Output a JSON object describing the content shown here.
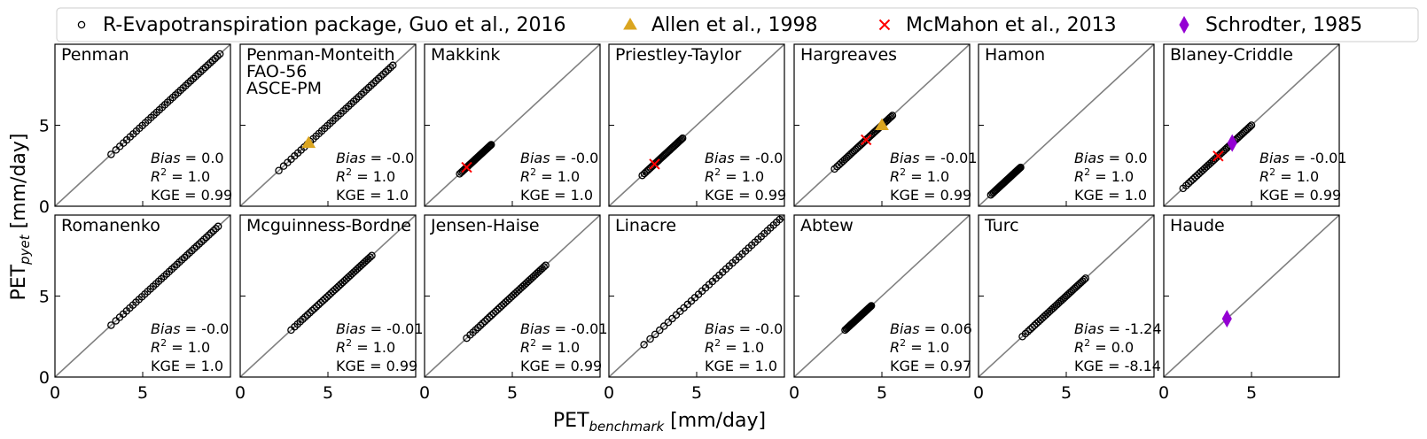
{
  "figure": {
    "legend": [
      {
        "label": "R-Evapotranspiration package, Guo et al., 2016",
        "marker": "open-circle",
        "color": "#000000"
      },
      {
        "label": "Allen et al., 1998",
        "marker": "triangle",
        "color": "#DAA520"
      },
      {
        "label": "McMahon et al., 2013",
        "marker": "cross",
        "color": "#FF0000"
      },
      {
        "label": "Schrodter, 1985",
        "marker": "thin-diamond",
        "color": "#9400D3"
      }
    ],
    "xlabel_main": "PET",
    "xlabel_sub": "benchmark",
    "xlabel_unit": " [mm/day]",
    "ylabel_main": "PET",
    "ylabel_sub": "pyet",
    "ylabel_unit": " [mm/day]",
    "bias_label": "Bias",
    "r2_label": "R",
    "kge_label": "KGE",
    "colors": {
      "reference": "#000000",
      "line": "#808080"
    }
  },
  "chart_data": [
    {
      "type": "scatter",
      "title": [
        "Penman"
      ],
      "stats": {
        "bias": "0.0",
        "r2": "1.0",
        "kge": "0.99"
      },
      "xlim": [
        0,
        10
      ],
      "ylim": [
        0,
        10
      ],
      "xticks": [
        0,
        5
      ],
      "yticks": [
        0,
        5
      ],
      "identity_line": true,
      "reference": {
        "from": 3.2,
        "to": 9.4,
        "n": 40
      },
      "markers": []
    },
    {
      "type": "scatter",
      "title": [
        "Penman-Monteith",
        "FAO-56",
        "ASCE-PM"
      ],
      "stats": {
        "bias": "-0.0",
        "r2": "1.0",
        "kge": "1.0"
      },
      "xlim": [
        0,
        10
      ],
      "ylim": [
        0,
        10
      ],
      "xticks": [
        0,
        5
      ],
      "yticks": [
        0,
        5
      ],
      "identity_line": true,
      "reference": {
        "from": 2.2,
        "to": 8.7,
        "n": 42
      },
      "markers": [
        {
          "series": "Allen et al., 1998",
          "x": 3.9,
          "y": 3.9
        }
      ]
    },
    {
      "type": "scatter",
      "title": [
        "Makkink"
      ],
      "stats": {
        "bias": "-0.0",
        "r2": "1.0",
        "kge": "1.0"
      },
      "xlim": [
        0,
        10
      ],
      "ylim": [
        0,
        10
      ],
      "xticks": [
        0,
        5
      ],
      "yticks": [
        0,
        5
      ],
      "identity_line": true,
      "reference": {
        "from": 2.0,
        "to": 3.8,
        "n": 34
      },
      "markers": [
        {
          "series": "McMahon et al., 2013",
          "x": 2.4,
          "y": 2.4
        }
      ]
    },
    {
      "type": "scatter",
      "title": [
        "Priestley-Taylor"
      ],
      "stats": {
        "bias": "-0.0",
        "r2": "1.0",
        "kge": "0.99"
      },
      "xlim": [
        0,
        10
      ],
      "ylim": [
        0,
        10
      ],
      "xticks": [
        0,
        5
      ],
      "yticks": [
        0,
        5
      ],
      "identity_line": true,
      "reference": {
        "from": 1.9,
        "to": 4.2,
        "n": 34
      },
      "markers": [
        {
          "series": "McMahon et al., 2013",
          "x": 2.6,
          "y": 2.6
        }
      ]
    },
    {
      "type": "scatter",
      "title": [
        "Hargreaves"
      ],
      "stats": {
        "bias": "-0.01",
        "r2": "1.0",
        "kge": "0.99"
      },
      "xlim": [
        0,
        10
      ],
      "ylim": [
        0,
        10
      ],
      "xticks": [
        0,
        5
      ],
      "yticks": [
        0,
        5
      ],
      "identity_line": true,
      "reference": {
        "from": 2.3,
        "to": 5.6,
        "n": 40
      },
      "markers": [
        {
          "series": "McMahon et al., 2013",
          "x": 4.1,
          "y": 4.1
        },
        {
          "series": "Allen et al., 1998",
          "x": 5.0,
          "y": 5.0
        }
      ]
    },
    {
      "type": "scatter",
      "title": [
        "Hamon"
      ],
      "stats": {
        "bias": "0.0",
        "r2": "1.0",
        "kge": "1.0"
      },
      "xlim": [
        0,
        10
      ],
      "ylim": [
        0,
        10
      ],
      "xticks": [
        0,
        5
      ],
      "yticks": [
        0,
        5
      ],
      "identity_line": true,
      "reference": {
        "from": 0.7,
        "to": 2.4,
        "n": 34
      },
      "markers": []
    },
    {
      "type": "scatter",
      "title": [
        "Blaney-Criddle"
      ],
      "stats": {
        "bias": "-0.01",
        "r2": "1.0",
        "kge": "0.99"
      },
      "xlim": [
        0,
        10
      ],
      "ylim": [
        0,
        10
      ],
      "xticks": [
        0,
        5
      ],
      "yticks": [
        0,
        5
      ],
      "identity_line": true,
      "reference": {
        "from": 1.1,
        "to": 5.0,
        "n": 40
      },
      "markers": [
        {
          "series": "McMahon et al., 2013",
          "x": 3.1,
          "y": 3.1
        },
        {
          "series": "Schrodter, 1985",
          "x": 3.9,
          "y": 3.9
        }
      ]
    },
    {
      "type": "scatter",
      "title": [
        "Romanenko"
      ],
      "stats": {
        "bias": "-0.0",
        "r2": "1.0",
        "kge": "1.0"
      },
      "xlim": [
        0,
        10
      ],
      "ylim": [
        0,
        10
      ],
      "xticks": [
        0,
        5
      ],
      "yticks": [
        0,
        5
      ],
      "identity_line": true,
      "reference": {
        "from": 3.2,
        "to": 9.3,
        "n": 40
      },
      "markers": []
    },
    {
      "type": "scatter",
      "title": [
        "Mcguinness-Bordne"
      ],
      "stats": {
        "bias": "-0.01",
        "r2": "1.0",
        "kge": "0.99"
      },
      "xlim": [
        0,
        10
      ],
      "ylim": [
        0,
        10
      ],
      "xticks": [
        0,
        5
      ],
      "yticks": [
        0,
        5
      ],
      "identity_line": true,
      "reference": {
        "from": 2.9,
        "to": 7.5,
        "n": 40
      },
      "markers": []
    },
    {
      "type": "scatter",
      "title": [
        "Jensen-Haise"
      ],
      "stats": {
        "bias": "-0.01",
        "r2": "1.0",
        "kge": "0.99"
      },
      "xlim": [
        0,
        10
      ],
      "ylim": [
        0,
        10
      ],
      "xticks": [
        0,
        5
      ],
      "yticks": [
        0,
        5
      ],
      "identity_line": true,
      "reference": {
        "from": 2.4,
        "to": 6.9,
        "n": 40
      },
      "markers": []
    },
    {
      "type": "scatter",
      "title": [
        "Linacre"
      ],
      "stats": {
        "bias": "-0.0",
        "r2": "1.0",
        "kge": "1.0"
      },
      "xlim": [
        0,
        10
      ],
      "ylim": [
        0,
        10
      ],
      "xticks": [
        0,
        5
      ],
      "yticks": [
        0,
        5
      ],
      "identity_line": true,
      "reference": {
        "from": 2.0,
        "to": 9.9,
        "n": 40
      },
      "markers": []
    },
    {
      "type": "scatter",
      "title": [
        "Abtew"
      ],
      "stats": {
        "bias": "0.06",
        "r2": "1.0",
        "kge": "0.97"
      },
      "xlim": [
        0,
        10
      ],
      "ylim": [
        0,
        10
      ],
      "xticks": [
        0,
        5
      ],
      "yticks": [
        0,
        5
      ],
      "identity_line": true,
      "reference": {
        "from": 2.9,
        "to": 4.4,
        "n": 36
      },
      "markers": []
    },
    {
      "type": "scatter",
      "title": [
        "Turc"
      ],
      "stats": {
        "bias": "-1.24",
        "r2": "0.0",
        "kge": "-8.14"
      },
      "xlim": [
        0,
        10
      ],
      "ylim": [
        0,
        10
      ],
      "xticks": [
        0,
        5
      ],
      "yticks": [
        0,
        5
      ],
      "identity_line": true,
      "reference": {
        "from": 2.5,
        "to": 6.1,
        "n": 36
      },
      "markers": []
    },
    {
      "type": "scatter",
      "title": [
        "Haude"
      ],
      "stats": null,
      "xlim": [
        0,
        10
      ],
      "ylim": [
        0,
        10
      ],
      "xticks": [
        0,
        5
      ],
      "yticks": [
        0,
        5
      ],
      "identity_line": true,
      "reference": null,
      "markers": [
        {
          "series": "Schrodter, 1985",
          "x": 3.6,
          "y": 3.6
        }
      ]
    }
  ]
}
